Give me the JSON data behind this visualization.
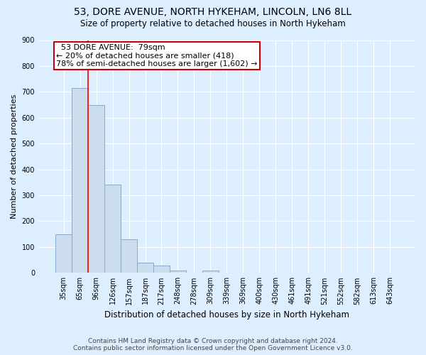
{
  "title_line1": "53, DORE AVENUE, NORTH HYKEHAM, LINCOLN, LN6 8LL",
  "title_line2": "Size of property relative to detached houses in North Hykeham",
  "xlabel": "Distribution of detached houses by size in North Hykeham",
  "ylabel": "Number of detached properties",
  "footer_line1": "Contains HM Land Registry data © Crown copyright and database right 2024.",
  "footer_line2": "Contains public sector information licensed under the Open Government Licence v3.0.",
  "categories": [
    "35sqm",
    "65sqm",
    "96sqm",
    "126sqm",
    "157sqm",
    "187sqm",
    "217sqm",
    "248sqm",
    "278sqm",
    "309sqm",
    "339sqm",
    "369sqm",
    "400sqm",
    "430sqm",
    "461sqm",
    "491sqm",
    "521sqm",
    "552sqm",
    "582sqm",
    "613sqm",
    "643sqm"
  ],
  "values": [
    150,
    715,
    650,
    340,
    130,
    40,
    27,
    10,
    0,
    8,
    0,
    0,
    0,
    0,
    0,
    0,
    0,
    0,
    0,
    0,
    0
  ],
  "bar_color": "#ccdded",
  "bar_edge_color": "#88aacc",
  "red_line_x": 1.5,
  "annotation_text_line1": "  53 DORE AVENUE:  79sqm",
  "annotation_text_line2": "← 20% of detached houses are smaller (418)",
  "annotation_text_line3": "78% of semi-detached houses are larger (1,602) →",
  "annotation_box_color": "#ffffff",
  "annotation_box_edge": "#cc0000",
  "ylim": [
    0,
    900
  ],
  "yticks": [
    0,
    100,
    200,
    300,
    400,
    500,
    600,
    700,
    800,
    900
  ],
  "bg_color": "#ddeeff",
  "plot_bg_color": "#ddeeff",
  "grid_color": "#ffffff",
  "title_fontsize": 10,
  "subtitle_fontsize": 9
}
